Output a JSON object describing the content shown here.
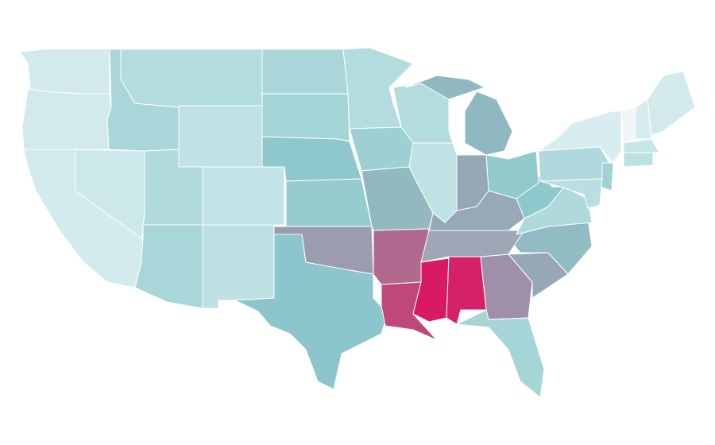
{
  "map": {
    "region_colors": [
      "#d2eaec",
      "#d2eaec",
      "#d3ebed",
      "#cde8ea",
      "#a9d6d8",
      "#b3dcde",
      "#bfe2e4",
      "#b2dbdd",
      "#c3e4e6",
      "#a9d6d8",
      "#bde1e3",
      "#a9d6d8",
      "#a6d5d7",
      "#8fc8cc",
      "#96cccf",
      "#9b9cb0",
      "#8ac6cb",
      "#b3dcde",
      "#9dd0d3",
      "#92b8c0",
      "#b16a8f",
      "#c0477a",
      "#d71a62",
      "#d4216a",
      "#a08fa8",
      "#a6d5d7",
      "#96a7b5",
      "#91bcc3",
      "#9fa6b6",
      "#97a9b6",
      "#b0d9dc",
      "#8ec8cc",
      "#92c9cd",
      "#96a8b6",
      "#bfe2e4",
      "#b3dcde",
      "#8fb8c1",
      "#aed8db",
      "#d8edef",
      "#a0d1d4",
      "#b9dfe2",
      "#f1f5f6",
      "#d6ecee",
      "#d2eaec",
      "#c6e5e7",
      "#bde1e3"
    ]
  }
}
